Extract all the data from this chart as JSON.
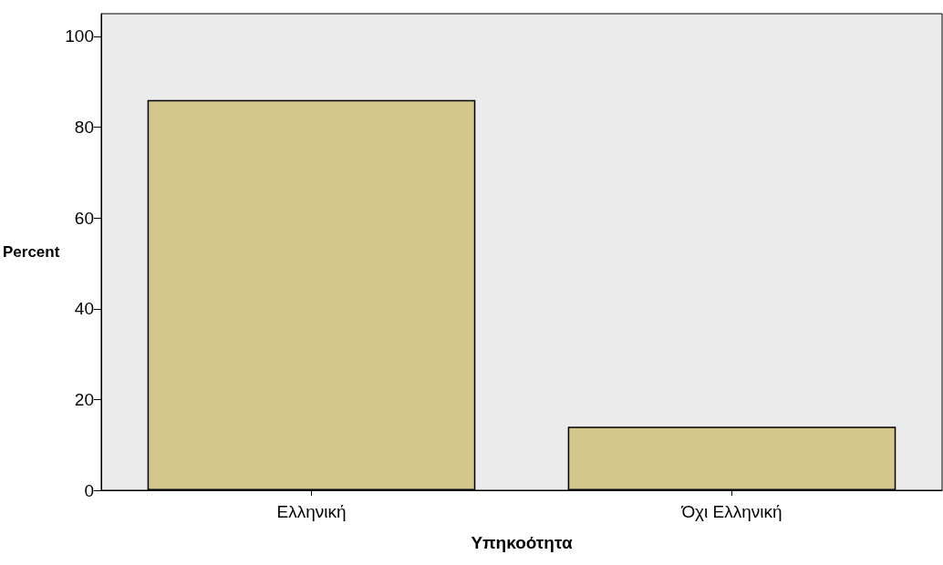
{
  "chart_data": {
    "type": "bar",
    "xlabel": "Υπηκοότητα",
    "ylabel": "Percent",
    "categories": [
      "Ελληνική",
      "Όχι Ελληνική"
    ],
    "values": [
      86,
      14
    ],
    "color": "#d4c78b",
    "ylim": [
      0,
      105
    ],
    "yticks": [
      0,
      20,
      40,
      60,
      80,
      100
    ],
    "grid": false
  }
}
